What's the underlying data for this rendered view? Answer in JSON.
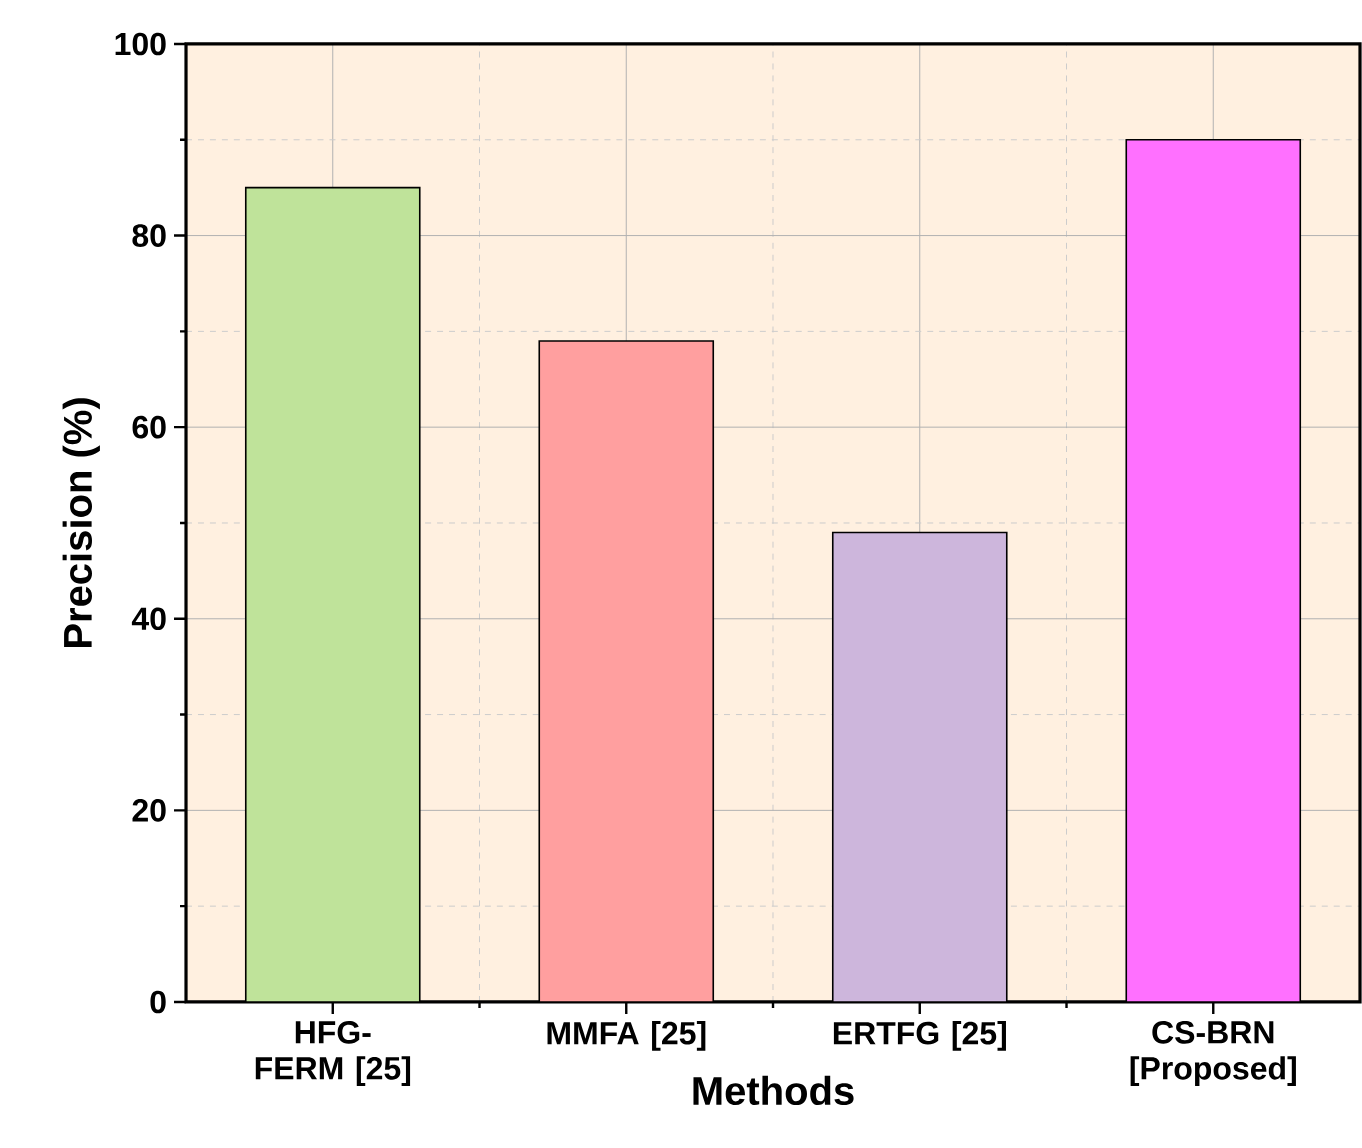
{
  "chart_data": {
    "type": "bar",
    "xlabel": "Methods",
    "ylabel": "Precision (%)",
    "categories": [
      "HFG-FERM [25]",
      "MMFA [25]",
      "ERTFG [25]",
      "CS-BRN [Proposed]"
    ],
    "values": [
      85,
      69,
      49,
      90
    ],
    "colors": [
      "#bfe39a",
      "#ff9f9f",
      "#cdb6dc",
      "#ff70ff"
    ],
    "ylim": [
      0,
      100
    ],
    "yticks": [
      0,
      20,
      40,
      60,
      80,
      100
    ],
    "grid": true
  }
}
